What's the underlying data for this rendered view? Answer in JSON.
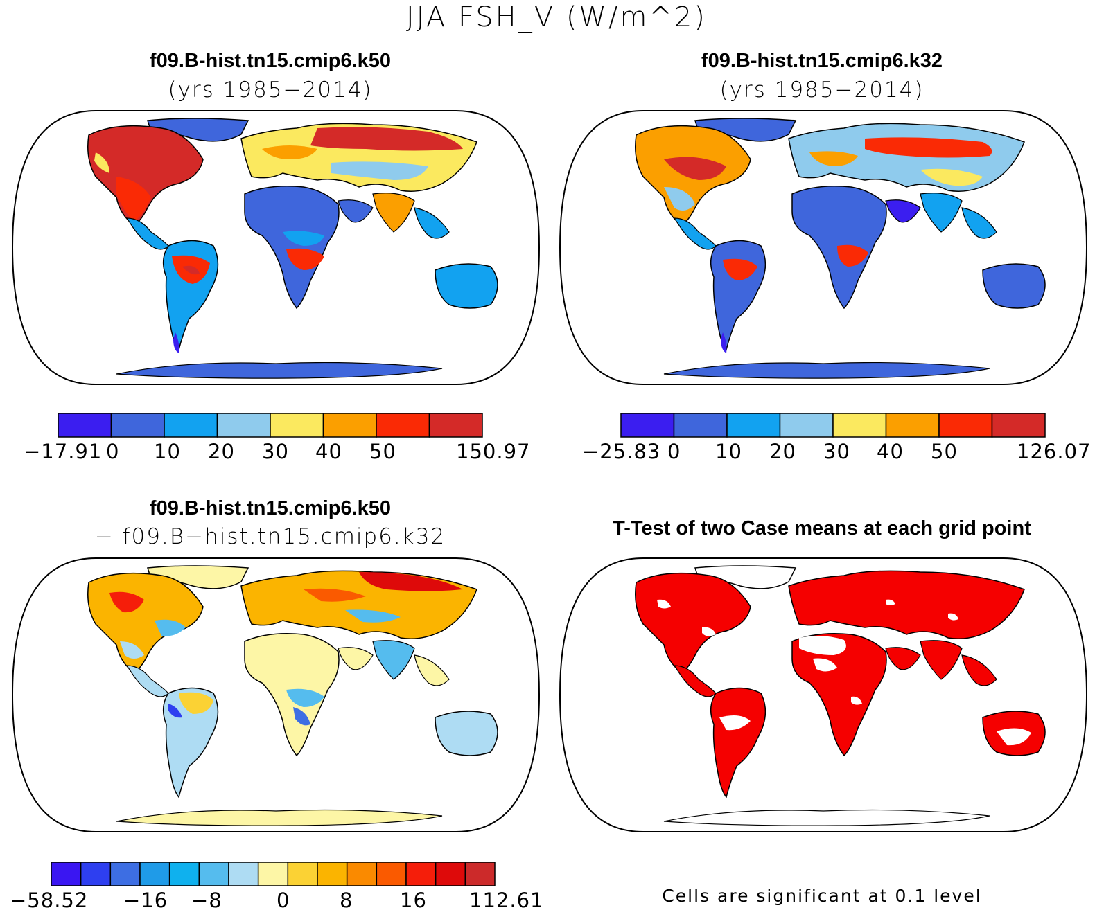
{
  "figure": {
    "title": "JJA FSH_V (W/m^2)"
  },
  "panels": {
    "top_left": {
      "title": "f09.B-hist.tn15.cmip6.k50",
      "subtitle": "(yrs 1985−2014)",
      "colorbar": {
        "colors": [
          "#3b1ef0",
          "#3f66dc",
          "#12a2f0",
          "#8fcbed",
          "#fbe95f",
          "#fb9f00",
          "#fa2a05",
          "#d42a28"
        ],
        "labels": [
          "−17.91",
          "0",
          "10",
          "20",
          "30",
          "40",
          "50",
          "150.97"
        ]
      }
    },
    "top_right": {
      "title": "f09.B-hist.tn15.cmip6.k32",
      "subtitle": "(yrs 1985−2014)",
      "colorbar": {
        "colors": [
          "#3b1ef0",
          "#3f66dc",
          "#12a2f0",
          "#8fcbed",
          "#fbe95f",
          "#fb9f00",
          "#fa2a05",
          "#d42a28"
        ],
        "labels": [
          "−25.83",
          "0",
          "10",
          "20",
          "30",
          "40",
          "50",
          "126.07"
        ]
      }
    },
    "bottom_left": {
      "title": "f09.B-hist.tn15.cmip6.k50",
      "subtitle": "− f09.B−hist.tn15.cmip6.k32",
      "colorbar": {
        "colors": [
          "#3a16f2",
          "#2e3ff0",
          "#3d6ee3",
          "#1f9be8",
          "#0fb1ee",
          "#55bcee",
          "#aedcf3",
          "#fdf6a6",
          "#fbd234",
          "#fbb400",
          "#fa8a00",
          "#fa5a00",
          "#f51e0a",
          "#de0a0a",
          "#cc2a2a"
        ],
        "labels": [
          "−58.52",
          "−16",
          "−8",
          "0",
          "8",
          "16",
          "112.61"
        ]
      }
    },
    "bottom_right": {
      "title": "T-Test of two Case means at each grid point",
      "note": "Cells are significant at 0.1 level",
      "significant_color": "#f50000"
    }
  }
}
